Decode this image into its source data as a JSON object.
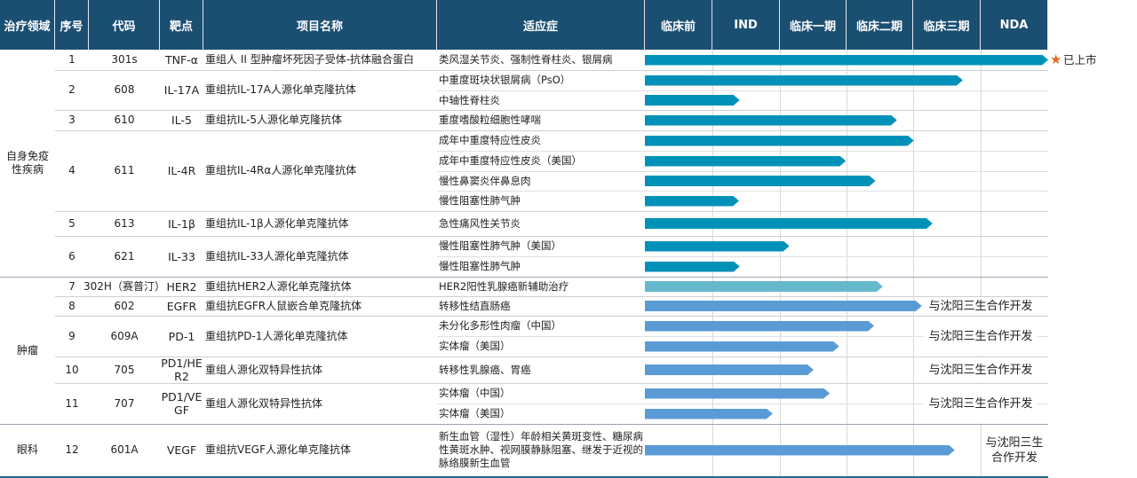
{
  "header": [
    "治疗领域",
    "序号",
    "代码",
    "靶点",
    "项目名称",
    "适应症",
    "临床前",
    "IND",
    "临床一期",
    "临床二期",
    "临床三期",
    "NDA"
  ],
  "colors": {
    "header": "#1b4f72",
    "autoimmune_bar": "#0091b9",
    "her2_bar": "#66b8cc",
    "oncology_bar": "#5b9bd5",
    "star": "#e06a1b"
  },
  "phase_progress_unit": "phases (0=start of 临床前, 6=end of NDA)",
  "areas": [
    {
      "name": "自身免疫性疾病",
      "rows": [
        {
          "no": "1",
          "code": "301s",
          "target": "TNF-α",
          "project": "重组人 II 型肿瘤坏死因子受体-抗体融合蛋白",
          "indications": [
            {
              "text": "类风湿关节炎、强制性脊柱炎、银屑病",
              "progress": 6.0
            }
          ],
          "note": "已上市",
          "star": true
        },
        {
          "no": "2",
          "code": "608",
          "target": "IL-17A",
          "project": "重组抗IL-17A人源化单克隆抗体",
          "indications": [
            {
              "text": "中重度斑块状银屑病（PsO）",
              "progress": 4.73
            },
            {
              "text": "中轴性脊柱炎",
              "progress": 1.41
            }
          ]
        },
        {
          "no": "3",
          "code": "610",
          "target": "IL-5",
          "project": "重组抗IL-5人源化单克隆抗体",
          "indications": [
            {
              "text": "重度嗜酸粒细胞性哮喘",
              "progress": 3.75
            }
          ]
        },
        {
          "no": "4",
          "code": "611",
          "target": "IL-4R",
          "project": "重组抗IL-4Rα人源化单克隆抗体",
          "indications": [
            {
              "text": "成年中重度特应性皮炎",
              "progress": 4.0
            },
            {
              "text": "成年中重度特应性皮炎（美国）",
              "progress": 2.99
            },
            {
              "text": "慢性鼻窦炎伴鼻息肉",
              "progress": 3.43
            },
            {
              "text": "慢性阻塞性肺气肿",
              "progress": 1.4
            }
          ]
        },
        {
          "no": "5",
          "code": "613",
          "target": "IL-1β",
          "project": "重组抗IL-1β人源化单克隆抗体",
          "indications": [
            {
              "text": "急性痛风性关节炎",
              "progress": 4.28
            }
          ]
        },
        {
          "no": "6",
          "code": "621",
          "target": "IL-33",
          "project": "重组抗IL-33人源化单克隆抗体",
          "indications": [
            {
              "text": "慢性阻塞性肺气肿（美国）",
              "progress": 2.15
            },
            {
              "text": "慢性阻塞性肺气肿",
              "progress": 1.41
            }
          ]
        }
      ]
    },
    {
      "name": "肿瘤",
      "rows": [
        {
          "no": "7",
          "code": "302H（赛普汀）",
          "target": "HER2",
          "project": "重组抗HER2人源化单克隆抗体",
          "indications": [
            {
              "text": "HER2阳性乳腺癌新辅助治疗",
              "progress": 3.54
            }
          ],
          "her2": true
        },
        {
          "no": "8",
          "code": "602",
          "target": "EGFR",
          "project": "重组抗EGFR人鼠嵌合单克隆抗体",
          "indications": [
            {
              "text": "转移性结直肠癌",
              "progress": 4.12
            }
          ],
          "note": "与沈阳三生合作开发"
        },
        {
          "no": "9",
          "code": "609A",
          "target": "PD-1",
          "project": "重组抗PD-1人源化单克隆抗体",
          "indications": [
            {
              "text": "未分化多形性肉瘤（中国）",
              "progress": 3.41
            },
            {
              "text": "实体瘤（美国）",
              "progress": 2.89
            }
          ],
          "note": "与沈阳三生合作开发"
        },
        {
          "no": "10",
          "code": "705",
          "target": "PD1/HER2",
          "project": "重组人源化双特异性抗体",
          "indications": [
            {
              "text": "转移性乳腺癌、胃癌",
              "progress": 2.51
            }
          ],
          "note": "与沈阳三生合作开发"
        },
        {
          "no": "11",
          "code": "707",
          "target": "PD1/VEGF",
          "project": "重组人源化双特异性抗体",
          "indications": [
            {
              "text": "实体瘤（中国）",
              "progress": 2.75
            },
            {
              "text": "实体瘤（美国）",
              "progress": 1.9
            }
          ],
          "note": "与沈阳三生合作开发"
        }
      ]
    },
    {
      "name": "眼科",
      "rows": [
        {
          "no": "12",
          "code": "601A",
          "target": "VEGF",
          "project": "重组抗VEGF人源化单克隆抗体",
          "indications": [
            {
              "text": "新生血管（湿性）年龄相关黄斑变性、糖尿病性黄斑水肿、视网膜静脉阻塞、继发于近视的脉络膜新生血管",
              "progress": 4.61
            }
          ],
          "note": "与沈阳三生合作开发",
          "note_in_nda": true
        }
      ]
    }
  ]
}
